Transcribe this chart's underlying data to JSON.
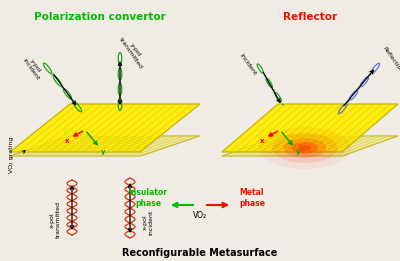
{
  "title": "Reconfigurable Metasurface",
  "left_title": "Polarization convertor",
  "left_title_color": "#00bb00",
  "right_title": "Reflector",
  "right_title_color": "#ee1100",
  "insulator_label": "Insulator\nphase",
  "metal_label": "Metal\nphase",
  "vo2_label": "VO₂",
  "vo2_grating_label": "VO₂ grating",
  "bg_color": "#f0ebe3",
  "plate_yellow": "#ffee00",
  "stripe_color": "#d4c020",
  "red_spot_color": "#ff2200",
  "green_wave_color": "#009900",
  "red_wave_color": "#cc2200",
  "blue_wave_color": "#4466cc",
  "x_axis_color": "#ff0000",
  "y_axis_color": "#00aa00"
}
